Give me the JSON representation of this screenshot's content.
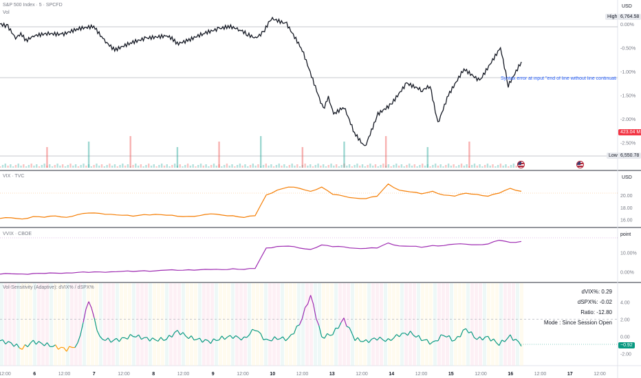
{
  "colors": {
    "price_line": "#131722",
    "vix_line": "#f57c00",
    "vvix_line": "#9c27b0",
    "osc_line": "#089981",
    "osc_pos": "#9c27b0",
    "osc_neg": "#ff9800",
    "vol_bar": "#26a69a",
    "vol_bar_down": "#ef5350",
    "grid": "#e0e3eb",
    "badge_red": "#f23645",
    "badge_green": "#089981",
    "error_text": "#2962ff"
  },
  "header": {
    "main_title": "S&P 500 Index · 5 · SPCFD",
    "main_sub": "Vol",
    "vix_title": "VIX · TVC",
    "vvix_title": "VVIX · CBOE",
    "osc_title": "Vol-Sensitivity (Adaptive): dVIX% / dSPX%"
  },
  "axis_labels": {
    "main_currency": "USD",
    "vix_currency": "USD",
    "vvix_unit": "point"
  },
  "badges": {
    "high_label": "High",
    "high_value": "6,764.58",
    "low_label": "Low",
    "low_value": "6,550.78",
    "volume_value": "423.04 M",
    "osc_value": "−0.92"
  },
  "error_message": "Syntax error at input \"end of line without line continuation\"",
  "stats": {
    "dvix": "dVIX%: 0.29",
    "dspx": "dSPX%: -0.02",
    "ratio": "Ratio: -12.80",
    "mode": "Mode : Since Session Open"
  },
  "time_axis": [
    "12:00",
    "6",
    "12:00",
    "7",
    "12:00",
    "8",
    "12:00",
    "9",
    "12:00",
    "10",
    "12:00",
    "13",
    "12:00",
    "14",
    "12:00",
    "15",
    "12:00",
    "16",
    "12:00",
    "17",
    "12:00"
  ],
  "chart_data": [
    {
      "type": "line",
      "title": "S&P 500 Index · 5 · SPCFD",
      "y_unit": "%",
      "y_ticks": [
        "0.00%",
        "-0.50%",
        "-1.00%",
        "-1.50%",
        "-2.00%",
        "-2.50%"
      ],
      "ylim": [
        -2.8,
        0.1
      ],
      "x": [
        0,
        3,
        6,
        8,
        10,
        13,
        18,
        24,
        30,
        36,
        40,
        44,
        50,
        56,
        64,
        66,
        68,
        72,
        78,
        84,
        88,
        92,
        95,
        98,
        101,
        104,
        110,
        116,
        124,
        126,
        128,
        132,
        136,
        140,
        145,
        150,
        156,
        162,
        165,
        168,
        172,
        178,
        184,
        192,
        195,
        200
      ],
      "values": [
        0.0,
        -0.05,
        -0.3,
        -0.2,
        -0.35,
        -0.25,
        -0.2,
        -0.22,
        -0.1,
        -0.05,
        -0.35,
        -0.55,
        -0.4,
        -0.3,
        -0.25,
        -0.3,
        -0.42,
        -0.35,
        -0.2,
        -0.1,
        -0.05,
        -0.12,
        -0.22,
        -0.3,
        -0.18,
        0.12,
        0.0,
        -0.55,
        -1.8,
        -1.55,
        -1.9,
        -1.75,
        -2.3,
        -2.6,
        -1.9,
        -1.7,
        -1.25,
        -1.4,
        -1.3,
        -2.1,
        -1.5,
        -0.95,
        -1.2,
        -0.5,
        -1.3,
        -0.8
      ],
      "volume_spikes_at": [
        18,
        34,
        50,
        68,
        84,
        100,
        116,
        132,
        148,
        164,
        180
      ],
      "high": "6,764.58",
      "low": "6,550.78"
    },
    {
      "type": "line",
      "title": "VIX · TVC",
      "series": [
        {
          "name": "VIX",
          "values": [
            16.2,
            16.3,
            16.1,
            16.5,
            16.4,
            16.6,
            16.4,
            16.8,
            17.1,
            17.0,
            16.9,
            16.7,
            16.6,
            16.8,
            16.9,
            16.7,
            16.6,
            16.5,
            16.7,
            16.9,
            16.8,
            16.6,
            16.4,
            16.6,
            20.1,
            20.8,
            21.4,
            21.1,
            20.7,
            21.3,
            20.2,
            19.8,
            19.6,
            19.4,
            19.9,
            21.8,
            20.9,
            20.5,
            20.3,
            20.6,
            20.1,
            19.8,
            20.4,
            20.1,
            19.9,
            20.3,
            21.2,
            20.6
          ]
        }
      ],
      "y_ticks": [
        "20.00",
        "18.00",
        "16.00"
      ],
      "ylim": [
        15.5,
        22.5
      ]
    },
    {
      "type": "line",
      "title": "VVIX · CBOE",
      "series": [
        {
          "name": "VVIX",
          "values": [
            -1.2,
            -1.0,
            -1.1,
            -0.9,
            -0.8,
            -0.7,
            -0.5,
            -0.3,
            -0.2,
            -0.1,
            0.1,
            0.2,
            0.3,
            0.5,
            0.6,
            0.8,
            0.9,
            1.0,
            1.2,
            1.1,
            1.3,
            1.5,
            1.4,
            1.6,
            12.5,
            13.0,
            13.5,
            12.2,
            11.8,
            13.8,
            13.2,
            12.8,
            12.4,
            12.0,
            12.5,
            14.8,
            13.6,
            13.1,
            12.9,
            13.5,
            13.8,
            14.2,
            14.5,
            13.9,
            14.6,
            16.2,
            15.4,
            15.6
          ]
        }
      ],
      "y_ticks": [
        "10.00%",
        "0.00%"
      ],
      "ylim": [
        -3,
        18
      ]
    },
    {
      "type": "line",
      "title": "Vol-Sensitivity (Adaptive): dVIX% / dSPX%",
      "series": [
        {
          "name": "Ratio",
          "values": [
            -0.5,
            -0.8,
            -1.4,
            -0.6,
            -0.9,
            -1.2,
            -1.5,
            -1.0,
            4.3,
            -0.2,
            -0.5,
            -0.3,
            0.1,
            -0.2,
            -0.4,
            -0.3,
            0.6,
            -0.1,
            -0.4,
            -0.6,
            -0.2,
            0.0,
            -0.3,
            0.9,
            -0.5,
            -0.2,
            -0.3,
            1.4,
            4.8,
            -0.1,
            0.3,
            2.0,
            -0.3,
            -0.6,
            -0.2,
            -0.5,
            0.2,
            0.4,
            -0.3,
            -0.8,
            0.2,
            -0.5,
            0.9,
            -0.3,
            -0.1,
            -0.9,
            0.0,
            -0.92
          ]
        }
      ],
      "y_ticks": [
        "4.00",
        "2.00",
        "0.00",
        "-2.00"
      ],
      "ylim": [
        -2.6,
        5.4
      ],
      "reference_line": 2.0,
      "last_value": -0.92
    }
  ]
}
